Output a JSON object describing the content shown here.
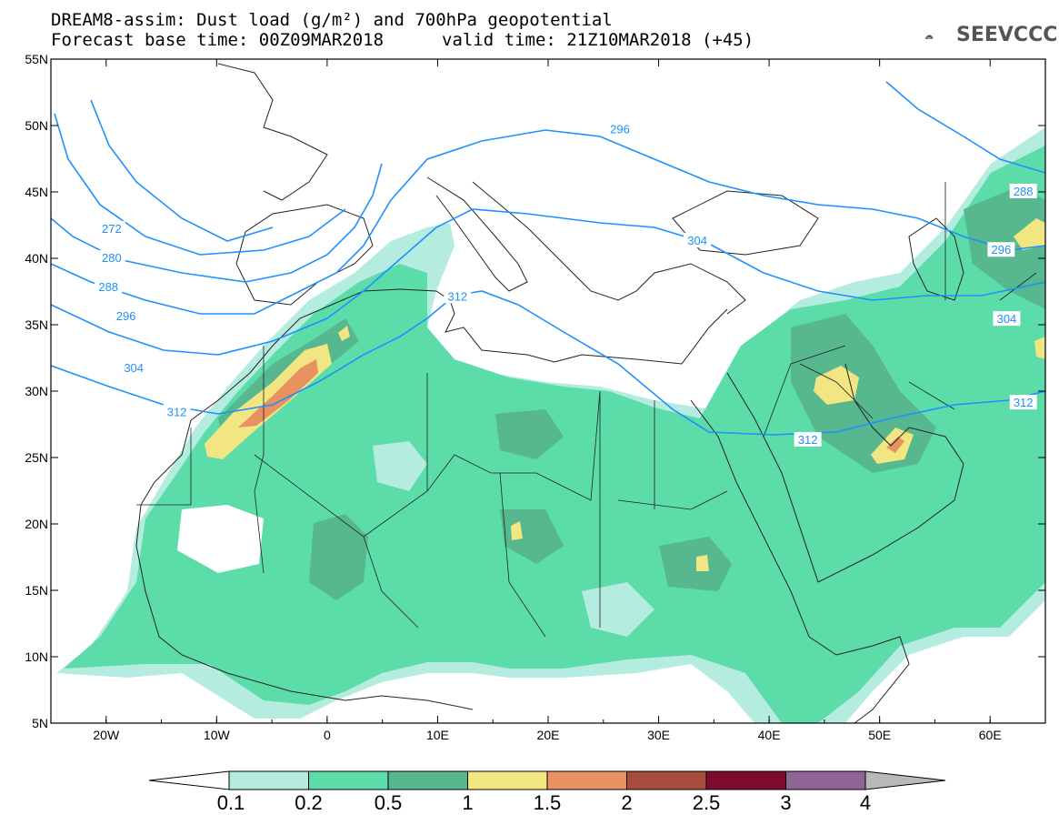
{
  "header": {
    "title_line1": "DREAM8-assim: Dust load (g/m²) and 700hPa geopotential",
    "title_line2": "Forecast base time: 00Z09MAR2018",
    "valid_time": "valid time: 21Z10MAR2018 (+45)"
  },
  "logo": {
    "text": "SEEVCCC",
    "icon": "cloud-icon"
  },
  "map": {
    "lon_range": [
      -25,
      65
    ],
    "lat_range": [
      5,
      55
    ],
    "lon_ticks": [
      {
        "v": -20,
        "label": "20W"
      },
      {
        "v": -10,
        "label": "10W"
      },
      {
        "v": 0,
        "label": "0"
      },
      {
        "v": 10,
        "label": "10E"
      },
      {
        "v": 20,
        "label": "20E"
      },
      {
        "v": 30,
        "label": "30E"
      },
      {
        "v": 40,
        "label": "40E"
      },
      {
        "v": 50,
        "label": "50E"
      },
      {
        "v": 60,
        "label": "60E"
      }
    ],
    "lat_ticks": [
      {
        "v": 55,
        "label": "55N"
      },
      {
        "v": 50,
        "label": "50N"
      },
      {
        "v": 45,
        "label": "45N"
      },
      {
        "v": 40,
        "label": "40N"
      },
      {
        "v": 35,
        "label": "35N"
      },
      {
        "v": 30,
        "label": "30N"
      },
      {
        "v": 25,
        "label": "25N"
      },
      {
        "v": 20,
        "label": "20N"
      },
      {
        "v": 15,
        "label": "15N"
      },
      {
        "v": 10,
        "label": "10N"
      },
      {
        "v": 5,
        "label": "5N"
      }
    ],
    "contour_labels": [
      {
        "text": "272",
        "lon": -19.5,
        "lat": 42.2
      },
      {
        "text": "280",
        "lon": -19.5,
        "lat": 40.0
      },
      {
        "text": "288",
        "lon": -19.8,
        "lat": 37.8
      },
      {
        "text": "296",
        "lon": -18.2,
        "lat": 35.6
      },
      {
        "text": "304",
        "lon": -17.5,
        "lat": 31.7
      },
      {
        "text": "312",
        "lon": -13.6,
        "lat": 28.4
      },
      {
        "text": "312",
        "lon": 11.8,
        "lat": 37.1
      },
      {
        "text": "296",
        "lon": 26.5,
        "lat": 49.7
      },
      {
        "text": "304",
        "lon": 33.5,
        "lat": 41.3
      },
      {
        "text": "312",
        "lon": 43.5,
        "lat": 26.3
      },
      {
        "text": "288",
        "lon": 63.0,
        "lat": 45.0
      },
      {
        "text": "296",
        "lon": 61.0,
        "lat": 40.6
      },
      {
        "text": "304",
        "lon": 61.5,
        "lat": 35.4
      },
      {
        "text": "312",
        "lon": 63.0,
        "lat": 29.1
      }
    ]
  },
  "colorbar": {
    "colors": [
      "#ffffff",
      "#b5ece0",
      "#5bdca9",
      "#57b78f",
      "#f1e682",
      "#e89161",
      "#a64d3b",
      "#7e0b2d",
      "#8f6596",
      "#b9b9b9"
    ],
    "labels": [
      "0.1",
      "0.2",
      "0.5",
      "1",
      "1.5",
      "2",
      "2.5",
      "3",
      "4"
    ]
  },
  "legend_colors": {
    "l1": "#b5ece0",
    "l2": "#5bdca9",
    "l3": "#57b78f",
    "l4": "#f1e682",
    "l5": "#e89161",
    "contour": "#1e90ff"
  }
}
